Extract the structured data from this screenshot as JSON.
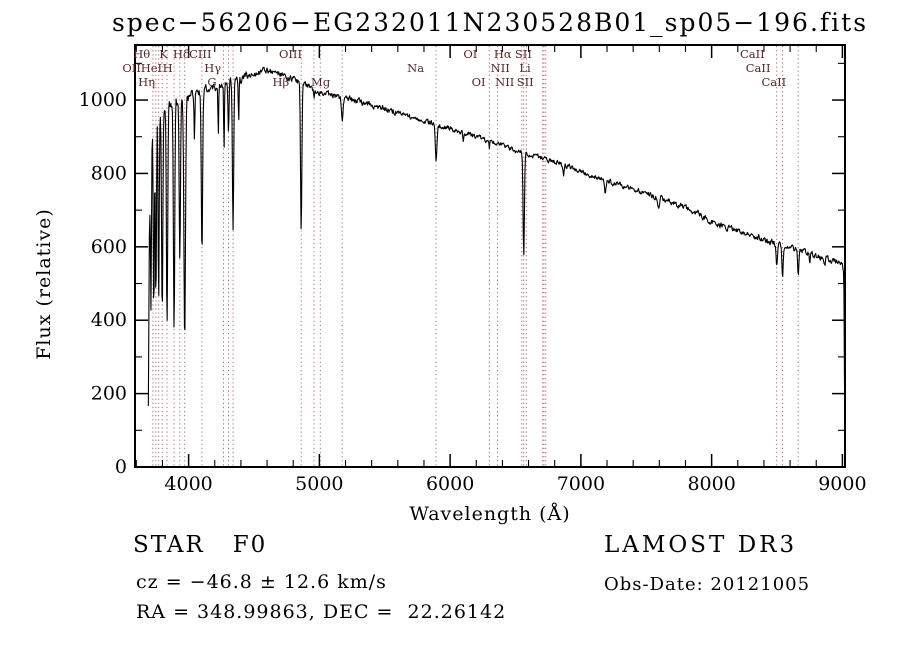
{
  "chart_data": {
    "type": "line",
    "title": "spec−56206−EG232011N230528B01_sp05−196.fits",
    "xlabel": "Wavelength (Å)",
    "ylabel": "Flux (relative)",
    "xlim": [
      3590,
      9020
    ],
    "ylim": [
      0,
      1150
    ],
    "xticks": [
      4000,
      5000,
      6000,
      7000,
      8000,
      9000
    ],
    "yticks": [
      0,
      200,
      400,
      600,
      800,
      1000
    ],
    "x_minor_step": 200,
    "y_minor_step": 100,
    "wave_start": 3692,
    "wave_end": 9018,
    "sample_step": 4,
    "line_color": "#000000",
    "marker_color": "#bb6f6f",
    "label_color": "#552828",
    "grid": false,
    "continuum": [
      [
        3692,
        160
      ],
      [
        3700,
        620
      ],
      [
        3708,
        840
      ],
      [
        3720,
        915
      ],
      [
        3740,
        945
      ],
      [
        3760,
        958
      ],
      [
        3800,
        975
      ],
      [
        3850,
        990
      ],
      [
        3900,
        1000
      ],
      [
        3950,
        1006
      ],
      [
        4000,
        1012
      ],
      [
        4100,
        1024
      ],
      [
        4200,
        1034
      ],
      [
        4300,
        1044
      ],
      [
        4400,
        1056
      ],
      [
        4500,
        1070
      ],
      [
        4570,
        1080
      ],
      [
        4650,
        1078
      ],
      [
        4700,
        1070
      ],
      [
        4800,
        1056
      ],
      [
        4900,
        1040
      ],
      [
        5000,
        1022
      ],
      [
        5100,
        1012
      ],
      [
        5200,
        1004
      ],
      [
        5300,
        996
      ],
      [
        5400,
        987
      ],
      [
        5500,
        977
      ],
      [
        5600,
        966
      ],
      [
        5700,
        955
      ],
      [
        5800,
        944
      ],
      [
        5900,
        933
      ],
      [
        6000,
        921
      ],
      [
        6100,
        910
      ],
      [
        6200,
        899
      ],
      [
        6300,
        888
      ],
      [
        6400,
        876
      ],
      [
        6500,
        864
      ],
      [
        6600,
        853
      ],
      [
        6700,
        843
      ],
      [
        6800,
        832
      ],
      [
        6900,
        820
      ],
      [
        7000,
        806
      ],
      [
        7100,
        792
      ],
      [
        7200,
        780
      ],
      [
        7300,
        768
      ],
      [
        7400,
        757
      ],
      [
        7500,
        746
      ],
      [
        7600,
        734
      ],
      [
        7700,
        720
      ],
      [
        7800,
        706
      ],
      [
        7900,
        690
      ],
      [
        8000,
        668
      ],
      [
        8100,
        655
      ],
      [
        8200,
        646
      ],
      [
        8300,
        634
      ],
      [
        8400,
        618
      ],
      [
        8500,
        606
      ],
      [
        8600,
        596
      ],
      [
        8700,
        586
      ],
      [
        8800,
        576
      ],
      [
        8900,
        566
      ],
      [
        8950,
        560
      ],
      [
        9000,
        548
      ],
      [
        9008,
        540
      ],
      [
        9012,
        480
      ],
      [
        9015,
        300
      ],
      [
        9018,
        90
      ]
    ],
    "absorption_features": [
      {
        "center": 3712,
        "flux": 430,
        "width": 4
      },
      {
        "center": 3734,
        "flux": 420,
        "width": 4
      },
      {
        "center": 3750,
        "flux": 445,
        "width": 4
      },
      {
        "center": 3771,
        "flux": 455,
        "width": 4
      },
      {
        "center": 3798,
        "flux": 410,
        "width": 5
      },
      {
        "center": 3835,
        "flux": 390,
        "width": 5
      },
      {
        "center": 3889,
        "flux": 375,
        "width": 5
      },
      {
        "center": 3933,
        "flux": 565,
        "width": 5
      },
      {
        "center": 3970,
        "flux": 355,
        "width": 6
      },
      {
        "center": 4045,
        "flux": 890,
        "width": 3
      },
      {
        "center": 4102,
        "flux": 580,
        "width": 5
      },
      {
        "center": 4227,
        "flux": 900,
        "width": 3
      },
      {
        "center": 4271,
        "flux": 850,
        "width": 3
      },
      {
        "center": 4305,
        "flux": 905,
        "width": 4
      },
      {
        "center": 4340,
        "flux": 645,
        "width": 5
      },
      {
        "center": 4383,
        "flux": 940,
        "width": 3
      },
      {
        "center": 4861,
        "flux": 635,
        "width": 5
      },
      {
        "center": 4959,
        "flux": 1000,
        "width": 3
      },
      {
        "center": 5175,
        "flux": 945,
        "width": 6
      },
      {
        "center": 5893,
        "flux": 830,
        "width": 6
      },
      {
        "center": 6100,
        "flux": 885,
        "width": 4
      },
      {
        "center": 6300,
        "flux": 865,
        "width": 3
      },
      {
        "center": 6563,
        "flux": 575,
        "width": 5
      },
      {
        "center": 6867,
        "flux": 795,
        "width": 6
      },
      {
        "center": 7186,
        "flux": 745,
        "width": 6
      },
      {
        "center": 7594,
        "flux": 700,
        "width": 8
      },
      {
        "center": 8227,
        "flux": 630,
        "width": 5
      },
      {
        "center": 8498,
        "flux": 540,
        "width": 5
      },
      {
        "center": 8542,
        "flux": 520,
        "width": 5
      },
      {
        "center": 8662,
        "flux": 525,
        "width": 5
      },
      {
        "center": 8750,
        "flux": 562,
        "width": 4
      },
      {
        "center": 8865,
        "flux": 548,
        "width": 4
      }
    ],
    "spectral_lines": [
      {
        "wavelength": 3727,
        "label": "OII",
        "row": 2
      },
      {
        "wavelength": 3750,
        "label": "",
        "row": 0
      },
      {
        "wavelength": 3771,
        "label": "",
        "row": 0
      },
      {
        "wavelength": 3798,
        "label": "Hθ",
        "row": 1
      },
      {
        "wavelength": 3835,
        "label": "Hη",
        "row": 3
      },
      {
        "wavelength": 3889,
        "label": "HeI",
        "row": 2
      },
      {
        "wavelength": 3933,
        "label": "K",
        "row": 1
      },
      {
        "wavelength": 3970,
        "label": "H",
        "row": 2
      },
      {
        "wavelength": 4102,
        "label": "Hδ",
        "row": 1
      },
      {
        "wavelength": 4267,
        "label": "CIII",
        "row": 1
      },
      {
        "wavelength": 4305,
        "label": "G",
        "row": 3
      },
      {
        "wavelength": 4340,
        "label": "Hγ",
        "row": 2
      },
      {
        "wavelength": 4861,
        "label": "Hβ",
        "row": 3
      },
      {
        "wavelength": 4959,
        "label": "OIII",
        "row": 1
      },
      {
        "wavelength": 5007,
        "label": "",
        "row": 0
      },
      {
        "wavelength": 5175,
        "label": "Mg",
        "row": 3
      },
      {
        "wavelength": 5893,
        "label": "Na",
        "row": 2
      },
      {
        "wavelength": 6300,
        "label": "OI",
        "row": 1
      },
      {
        "wavelength": 6363,
        "label": "OI",
        "row": 3
      },
      {
        "wavelength": 6548,
        "label": "NII",
        "row": 2
      },
      {
        "wavelength": 6563,
        "label": "Hα",
        "row": 1
      },
      {
        "wavelength": 6583,
        "label": "NII",
        "row": 3
      },
      {
        "wavelength": 6708,
        "label": "Li",
        "row": 2
      },
      {
        "wavelength": 6717,
        "label": "SII",
        "row": 1
      },
      {
        "wavelength": 6731,
        "label": "SII",
        "row": 3
      },
      {
        "wavelength": 8498,
        "label": "CaII",
        "row": 1
      },
      {
        "wavelength": 8542,
        "label": "CaII",
        "row": 2
      },
      {
        "wavelength": 8662,
        "label": "CaII",
        "row": 3
      }
    ]
  },
  "footer": {
    "class_label": "STAR   F0",
    "survey": "LAMOST DR3",
    "cz": "cz = −46.8 ± 12.6 km/s",
    "obs_date": "Obs-Date: 20121005",
    "coordinates": "RA = 348.99863, DEC =  22.26142"
  }
}
